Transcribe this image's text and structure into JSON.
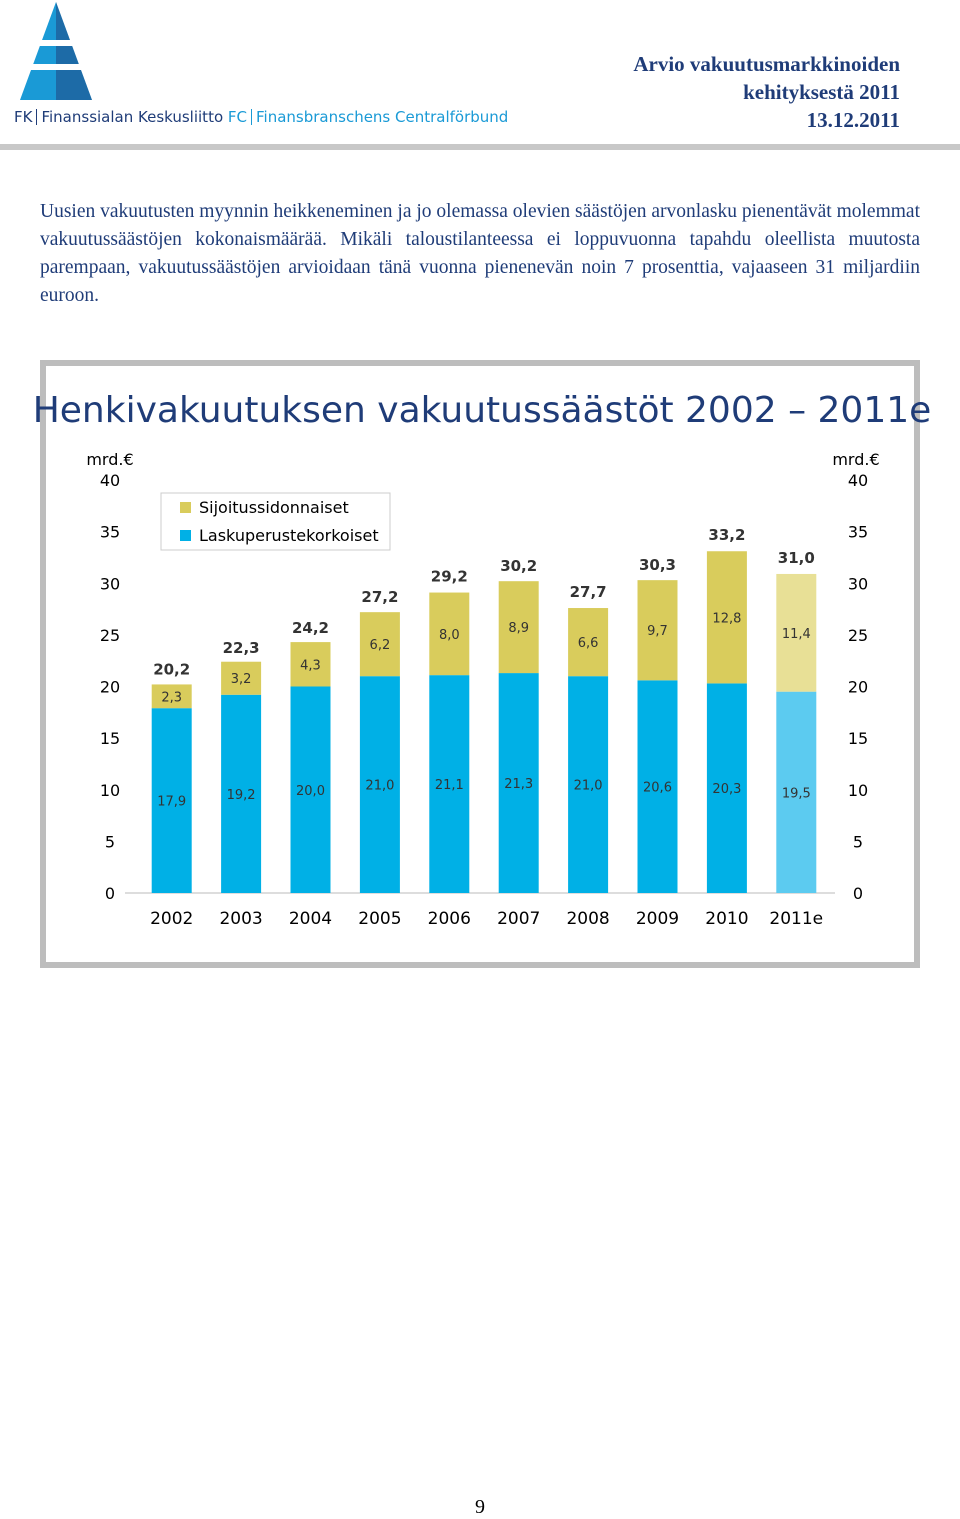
{
  "header": {
    "org_fi_abbr": "FK",
    "org_fi": "Finanssialan Keskusliitto",
    "org_sv_abbr": "FC",
    "org_sv": "Finansbranschens Centralförbund",
    "title_lines": [
      "Arvio vakuutusmarkkinoiden",
      "kehityksestä 2011"
    ],
    "date": "13.12.2011"
  },
  "paragraph": "Uusien vakuutusten myynnin heikkeneminen ja jo olemassa olevien säästöjen arvonlasku pienentävät molemmat vakuutussäästöjen kokonaismäärää. Mikäli taloustilanteessa ei loppuvuonna tapahdu oleellista muutosta parempaan, vakuutussäästöjen arvioidaan tänä vuonna pienenevän noin 7 prosenttia, vajaaseen 31 miljardiin euroon.",
  "chart_data": {
    "type": "stacked-bar",
    "title": "Henkivakuutuksen vakuutussäästöt 2002 – 2011e",
    "y_label": "mrd.€",
    "y2_label": "mrd.€",
    "categories": [
      "2002",
      "2003",
      "2004",
      "2005",
      "2006",
      "2007",
      "2008",
      "2009",
      "2010",
      "2011e"
    ],
    "series": [
      {
        "name": "Laskuperustekorkoiset",
        "color": "#00b0e6",
        "estimate_color": "#5ccbf0",
        "values": [
          17.9,
          19.2,
          20.0,
          21.0,
          21.1,
          21.3,
          21.0,
          20.6,
          20.3,
          19.5
        ],
        "value_labels": [
          "17,9",
          "19,2",
          "20,0",
          "21,0",
          "21,1",
          "21,3",
          "21,0",
          "20,6",
          "20,3",
          "19,5"
        ]
      },
      {
        "name": "Sijoitussidonnaiset",
        "color": "#d9cc5c",
        "estimate_color": "#e8e096",
        "values": [
          2.3,
          3.2,
          4.3,
          6.2,
          8.0,
          8.9,
          6.6,
          9.7,
          12.8,
          11.4
        ],
        "value_labels": [
          "2,3",
          "3,2",
          "4,3",
          "6,2",
          "8,0",
          "8,9",
          "6,6",
          "9,7",
          "12,8",
          "11,4"
        ]
      }
    ],
    "totals": [
      20.2,
      22.3,
      24.2,
      27.2,
      29.2,
      30.2,
      27.7,
      30.3,
      33.2,
      31.0
    ],
    "total_labels": [
      "20,2",
      "22,3",
      "24,2",
      "27,2",
      "29,2",
      "30,2",
      "27,7",
      "30,3",
      "33,2",
      "31,0"
    ],
    "ylim": [
      0,
      40
    ],
    "yticks": [
      0,
      5,
      10,
      15,
      20,
      25,
      30,
      35,
      40
    ],
    "y2lim": [
      0,
      40
    ],
    "y2ticks": [
      0,
      5,
      10,
      15,
      20,
      25,
      30,
      35,
      40
    ],
    "grid": false
  },
  "page_number": "9"
}
